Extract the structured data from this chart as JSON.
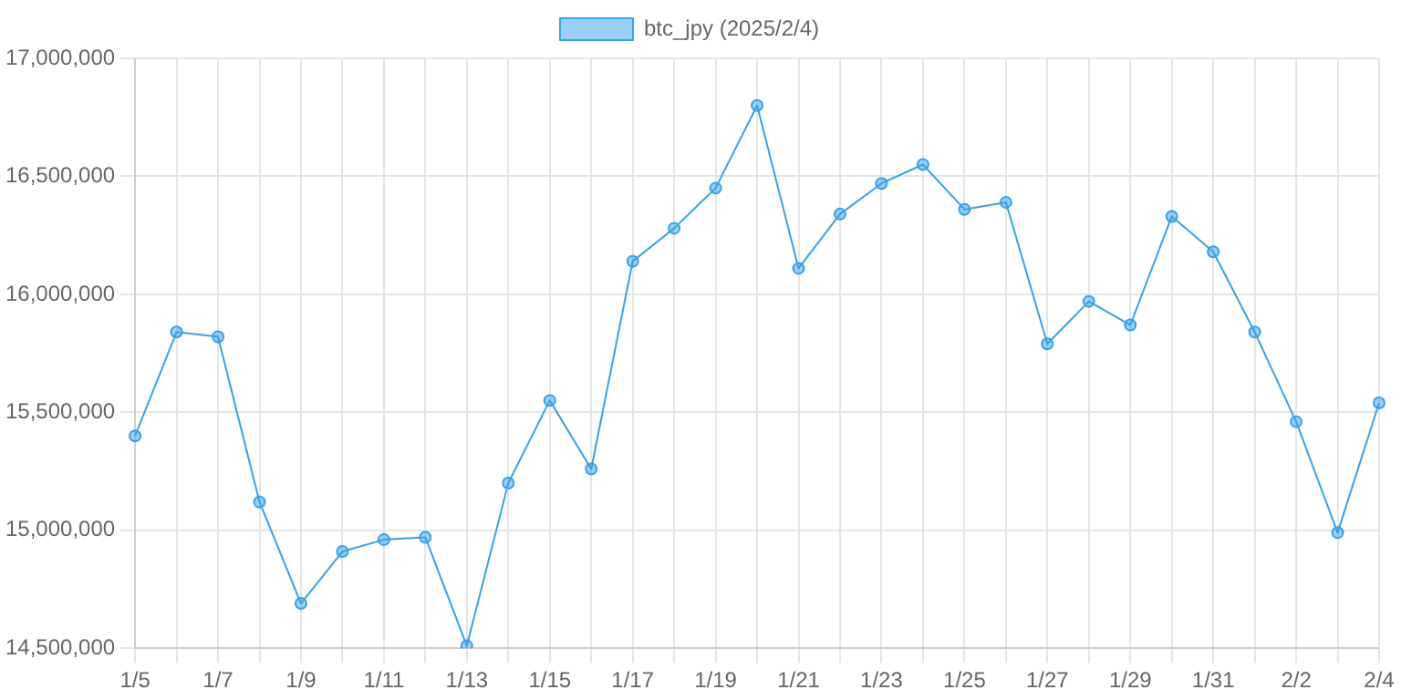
{
  "chart_data": {
    "type": "line",
    "categories": [
      "1/5",
      null,
      "1/7",
      null,
      "1/9",
      null,
      "1/11",
      null,
      "1/13",
      null,
      "1/15",
      null,
      "1/17",
      null,
      "1/19",
      null,
      "1/21",
      null,
      "1/23",
      null,
      "1/25",
      null,
      "1/27",
      null,
      "1/29",
      null,
      "1/31",
      null,
      "2/2",
      null,
      "2/4"
    ],
    "series": [
      {
        "name": "btc_jpy (2025/2/4)",
        "color": "#36a2eb",
        "values": [
          15400000,
          15840000,
          15820000,
          15120000,
          14690000,
          14910000,
          14960000,
          14970000,
          14510000,
          15200000,
          15550000,
          15260000,
          16140000,
          16280000,
          16450000,
          16800000,
          16110000,
          16340000,
          16470000,
          16550000,
          16360000,
          16390000,
          15790000,
          15970000,
          15870000,
          16330000,
          16180000,
          15840000,
          15460000,
          14990000,
          15540000
        ]
      }
    ],
    "ylim": [
      14500000,
      17000000
    ],
    "yticks": [
      {
        "value": 14500000,
        "label": "14,500,000"
      },
      {
        "value": 15000000,
        "label": "15,000,000"
      },
      {
        "value": 15500000,
        "label": "15,500,000"
      },
      {
        "value": 16000000,
        "label": "16,000,000"
      },
      {
        "value": 16500000,
        "label": "16,500,000"
      },
      {
        "value": 17000000,
        "label": "17,000,000"
      }
    ],
    "grid": true,
    "legend": "top",
    "marker": "circle",
    "line_style": "solid"
  }
}
